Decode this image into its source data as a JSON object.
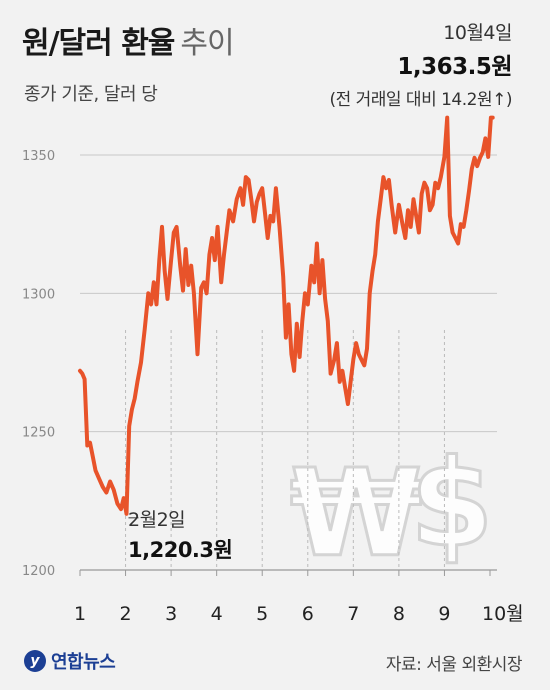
{
  "header": {
    "title": "원/달러 환율",
    "title_suffix": "추이",
    "subtitle": "종가 기준, 달러 당"
  },
  "annotation_high": {
    "date": "10월4일",
    "value": "1,363.5원",
    "change": "(전 거래일 대비 14.2원↑)"
  },
  "annotation_low": {
    "date": "2월2일",
    "value": "1,220.3원"
  },
  "footer": {
    "logo_text": "연합뉴스",
    "source": "자료: 서울 외환시장"
  },
  "colors": {
    "line": "#e8532a",
    "grid": "#c8c8c8",
    "background": "#f2f2f2",
    "axis_text": "#888888"
  },
  "watermark_icon": "won-dollar-symbols",
  "chart_data": {
    "type": "line",
    "title": "원/달러 환율 추이",
    "ylabel": "",
    "xlabel": "",
    "ylim": [
      1200,
      1370
    ],
    "yticks": [
      1200,
      1250,
      1300,
      1350
    ],
    "ytick_labels": [
      "1200",
      "1250",
      "1300",
      "1350"
    ],
    "xlim": [
      1,
      10.1
    ],
    "xticks": [
      1,
      2,
      3,
      4,
      5,
      6,
      7,
      8,
      9,
      10
    ],
    "xtick_labels": [
      "1",
      "2",
      "3",
      "4",
      "5",
      "6",
      "7",
      "8",
      "9",
      "10월"
    ],
    "grid": true,
    "series": [
      {
        "x": [
          1.0,
          1.05,
          1.1,
          1.16,
          1.22,
          1.28,
          1.34,
          1.42,
          1.5,
          1.58,
          1.66,
          1.74,
          1.82,
          1.9,
          1.96,
          2.02,
          2.08,
          2.14,
          2.2,
          2.26,
          2.34,
          2.42,
          2.5,
          2.56,
          2.62,
          2.68,
          2.74,
          2.8,
          2.86,
          2.92,
          3.0,
          3.06,
          3.12,
          3.2,
          3.26,
          3.32,
          3.38,
          3.44,
          3.5,
          3.58,
          3.66,
          3.72,
          3.78,
          3.84,
          3.9,
          3.96,
          4.02,
          4.1,
          4.16,
          4.22,
          4.28,
          4.36,
          4.44,
          4.52,
          4.58,
          4.64,
          4.7,
          4.76,
          4.82,
          4.88,
          4.94,
          5.0,
          5.06,
          5.12,
          5.18,
          5.24,
          5.3,
          5.38,
          5.46,
          5.52,
          5.58,
          5.64,
          5.7,
          5.76,
          5.82,
          5.88,
          5.94,
          6.0,
          6.08,
          6.14,
          6.2,
          6.26,
          6.32,
          6.38,
          6.44,
          6.5,
          6.58,
          6.64,
          6.7,
          6.76,
          6.82,
          6.88,
          6.94,
          7.0,
          7.06,
          7.12,
          7.18,
          7.24,
          7.3,
          7.36,
          7.42,
          7.48,
          7.54,
          7.6,
          7.66,
          7.72,
          7.78,
          7.84,
          7.92,
          8.0,
          8.08,
          8.14,
          8.2,
          8.26,
          8.32,
          8.38,
          8.44,
          8.5,
          8.56,
          8.62,
          8.68,
          8.74,
          8.8,
          8.86,
          8.92,
          9.0,
          9.06,
          9.12,
          9.18,
          9.24,
          9.3,
          9.36,
          9.42,
          9.48,
          9.54,
          9.6,
          9.66,
          9.72,
          9.78,
          9.84,
          9.9,
          9.96,
          10.02,
          10.06
        ],
        "y": [
          1272,
          1271,
          1269,
          1245,
          1246,
          1241,
          1236,
          1233,
          1230,
          1228,
          1232,
          1229,
          1224,
          1222,
          1226,
          1220.3,
          1252,
          1258,
          1262,
          1268,
          1275,
          1287,
          1300,
          1296,
          1304,
          1296,
          1312,
          1324,
          1308,
          1298,
          1312,
          1322,
          1324,
          1310,
          1301,
          1316,
          1303,
          1310,
          1300,
          1278,
          1302,
          1304,
          1300,
          1314,
          1320,
          1312,
          1324,
          1304,
          1314,
          1322,
          1330,
          1326,
          1334,
          1338,
          1332,
          1342,
          1341,
          1334,
          1326,
          1333,
          1336,
          1338,
          1329,
          1320,
          1328,
          1326,
          1338,
          1324,
          1306,
          1284,
          1296,
          1278,
          1272,
          1289,
          1277,
          1290,
          1300,
          1296,
          1310,
          1304,
          1318,
          1300,
          1312,
          1298,
          1290,
          1271,
          1276,
          1282,
          1268,
          1272,
          1266,
          1260,
          1268,
          1276,
          1282,
          1278,
          1276,
          1274,
          1280,
          1300,
          1308,
          1314,
          1326,
          1334,
          1342,
          1338,
          1341,
          1332,
          1322,
          1332,
          1325,
          1320,
          1330,
          1324,
          1334,
          1328,
          1322,
          1336,
          1340,
          1338,
          1330,
          1332,
          1340,
          1338,
          1342,
          1349.3,
          1363.5,
          1328,
          1322,
          1320,
          1318,
          1325,
          1324,
          1330,
          1337,
          1345,
          1349,
          1346,
          1349,
          1351,
          1356,
          1349.3,
          1363.5,
          1363.5
        ]
      }
    ]
  }
}
